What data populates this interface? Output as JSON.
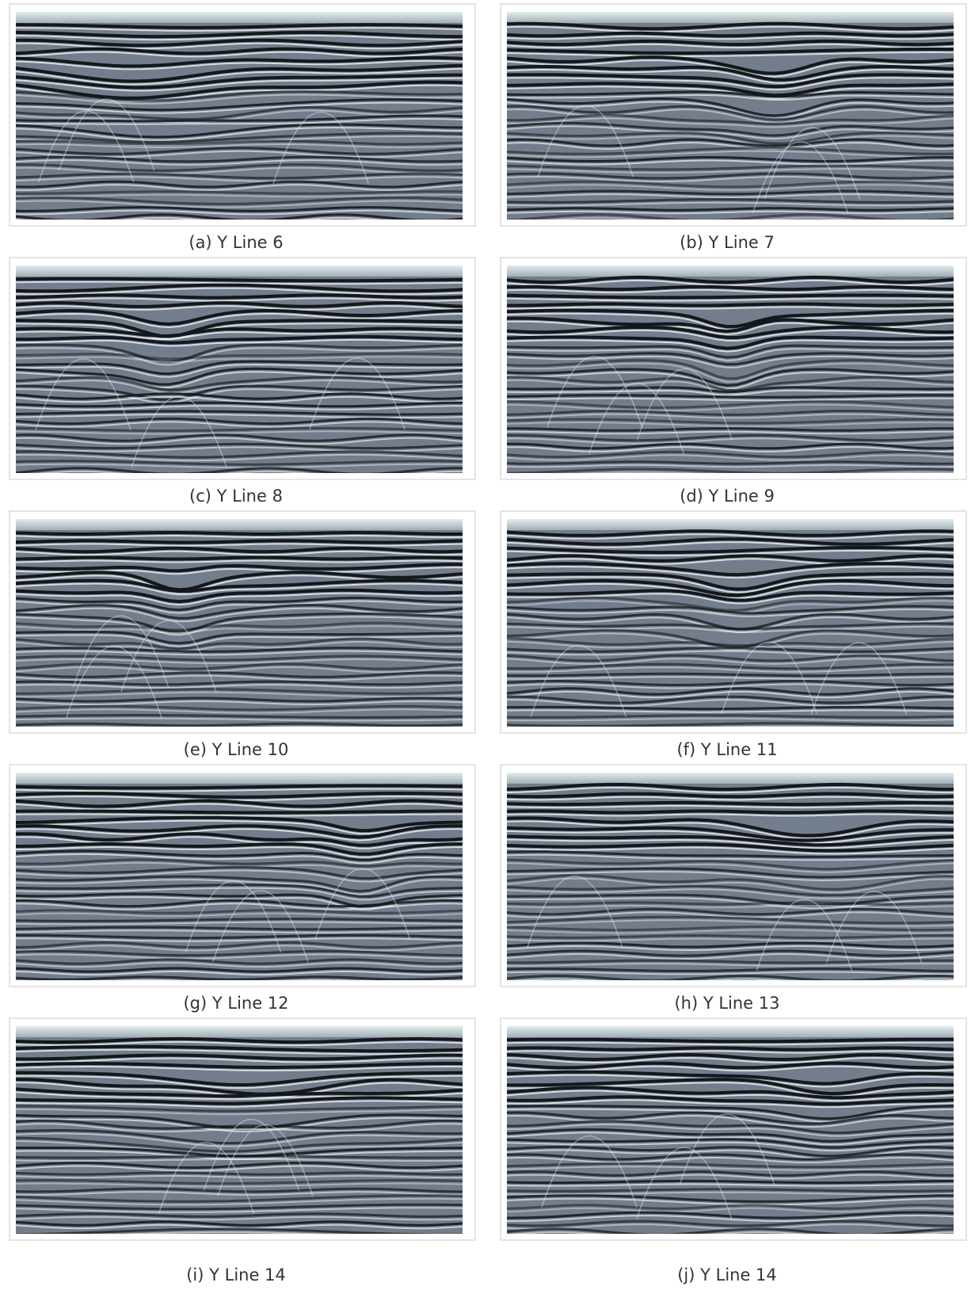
{
  "panels": [
    {
      "caption": "(a) Y Line 6"
    },
    {
      "caption": "(b) Y Line 7"
    },
    {
      "caption": "(c) Y Line 8"
    },
    {
      "caption": "(d) Y Line 9"
    },
    {
      "caption": "(e) Y Line 10"
    },
    {
      "caption": "(f) Y Line 11"
    },
    {
      "caption": "(g) Y Line 12"
    },
    {
      "caption": "(h) Y Line 13"
    },
    {
      "caption": "(i) Y Line 14"
    },
    {
      "caption": "(j) Y Line 14"
    }
  ]
}
